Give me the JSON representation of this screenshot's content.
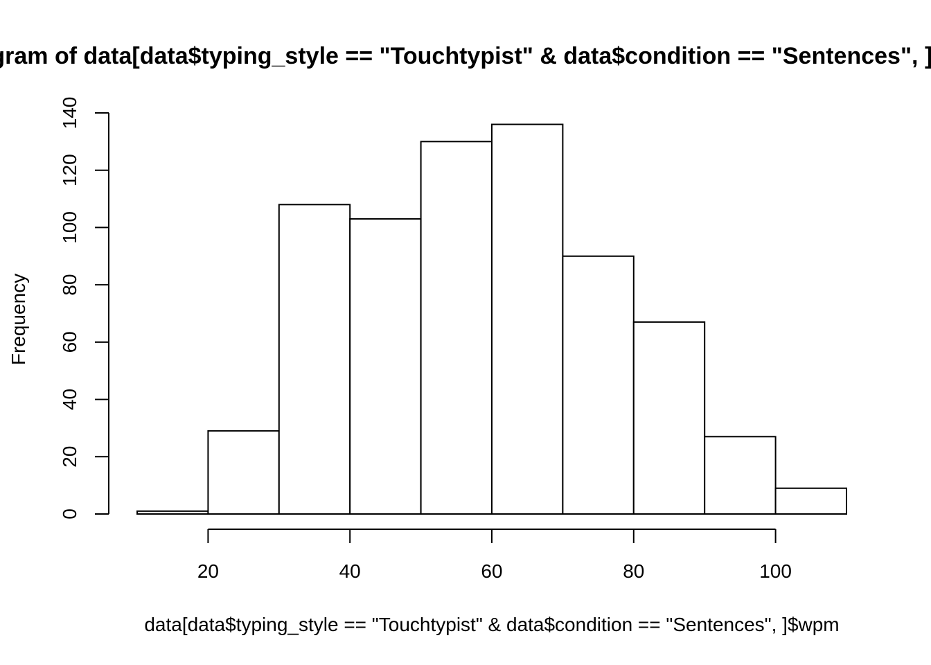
{
  "chart_data": {
    "type": "bar",
    "subtype": "histogram",
    "title": "Histogram of data[data$typing_style == \"Touchtypist\" & data$condition == \"Sentences\", ]$wpm",
    "xlabel": "data[data$typing_style == \"Touchtypist\" & data$condition == \"Sentences\", ]$wpm",
    "ylabel": "Frequency",
    "bins": [
      {
        "start": 10,
        "end": 20,
        "count": 1
      },
      {
        "start": 20,
        "end": 30,
        "count": 29
      },
      {
        "start": 30,
        "end": 40,
        "count": 108
      },
      {
        "start": 40,
        "end": 50,
        "count": 103
      },
      {
        "start": 50,
        "end": 60,
        "count": 130
      },
      {
        "start": 60,
        "end": 70,
        "count": 136
      },
      {
        "start": 70,
        "end": 80,
        "count": 90
      },
      {
        "start": 80,
        "end": 90,
        "count": 67
      },
      {
        "start": 90,
        "end": 100,
        "count": 27
      },
      {
        "start": 100,
        "end": 110,
        "count": 9
      }
    ],
    "xlim": [
      10,
      110
    ],
    "ylim": [
      0,
      140
    ],
    "x_ticks": [
      20,
      40,
      60,
      80,
      100
    ],
    "y_ticks": [
      0,
      20,
      40,
      60,
      80,
      100,
      120,
      140
    ],
    "grid": false,
    "bar_fill": "#ffffff",
    "bar_stroke": "#000000"
  }
}
